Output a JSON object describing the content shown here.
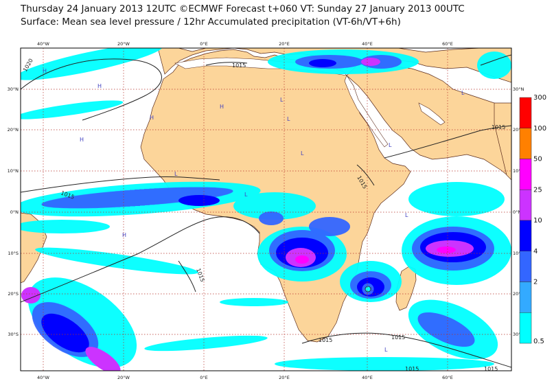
{
  "header": {
    "line1": "Thursday 24 January 2013 12UTC ©ECMWF Forecast t+060 VT: Sunday 27 January 2013 00UTC",
    "line2": "Surface: Mean sea level pressure / 12hr Accumulated precipitation (VT-6h/VT+6h)"
  },
  "axes": {
    "lon_labels_top": [
      "40°W",
      "20°W",
      "0°E",
      "20°E",
      "40°E",
      "60°E"
    ],
    "lon_labels_bottom": [
      "40°W",
      "20°W",
      "0°E",
      "20°E",
      "40°E",
      "60°E"
    ],
    "lat_labels_left": [
      "30°N",
      "20°N",
      "10°N",
      "0°N",
      "10°S",
      "20°S",
      "30°S"
    ],
    "lat_labels_right": [
      "30°N",
      "20°N",
      "10°N",
      "0°N",
      "10°S",
      "20°S",
      "30°S"
    ]
  },
  "legend": {
    "levels": [
      "300",
      "100",
      "50",
      "25",
      "10",
      "4",
      "2",
      "0.5"
    ],
    "colors": [
      "#ff0000",
      "#ff8000",
      "#ff00ff",
      "#cc33ff",
      "#0000ff",
      "#3366ff",
      "#33aaff",
      "#00ffff"
    ]
  },
  "isobars": {
    "labels": [
      "1020",
      "1015",
      "1015",
      "1015",
      "1015",
      "1015",
      "1015",
      "1015",
      "1015",
      "1015"
    ]
  },
  "pressure_centres": [
    "H",
    "H",
    "H",
    "H",
    "H",
    "H",
    "L",
    "L",
    "L",
    "L",
    "L",
    "L",
    "L",
    "L",
    "L",
    "L"
  ],
  "colors": {
    "land": "#fcd59a",
    "ocean": "#ffffff",
    "grid": "#b5302a",
    "isobar": "#222222",
    "coast": "#5a2a1a",
    "marker": "#4040c0"
  }
}
